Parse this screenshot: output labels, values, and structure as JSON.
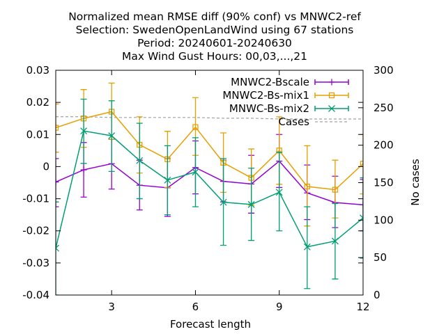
{
  "chart_data": {
    "type": "line",
    "title_lines": [
      "Normalized mean RMSE diff (90% conf) vs MNWC2-ref",
      "Selection: SwedenOpenLandWind using    67 stations",
      "Period: 20240601-20240630",
      "Max Wind Gust   Hours: 00,03,...,21"
    ],
    "xlabel": "Forecast length",
    "ylabel_right": "No cases",
    "xlim": [
      1,
      12
    ],
    "ylim": [
      -0.04,
      0.03
    ],
    "y2lim": [
      0,
      300
    ],
    "x_ticks": [
      3,
      6,
      9,
      12
    ],
    "y_ticks": [
      -0.04,
      -0.03,
      -0.02,
      -0.01,
      0,
      0.01,
      0.02,
      0.03
    ],
    "y_tick_labels": [
      "-0.04",
      "-0.03",
      "-0.02",
      "-0.01",
      "0",
      "0.01",
      "0.02",
      "0.03"
    ],
    "y2_ticks": [
      0,
      50,
      100,
      150,
      200,
      250,
      300
    ],
    "legend_position": "top-right",
    "series": [
      {
        "name": "MNWC2-Bscale",
        "color": "#9400d3",
        "marker": "plus",
        "x": [
          1,
          2,
          3,
          4,
          5,
          6,
          7,
          8,
          9,
          10,
          11,
          12
        ],
        "y": [
          -0.0048,
          -0.001,
          0.0009,
          -0.0058,
          -0.0066,
          -0.0003,
          -0.0046,
          -0.0054,
          0.0017,
          -0.0082,
          -0.0112,
          -0.0119
        ],
        "lo": [
          -0.0125,
          -0.0095,
          -0.007,
          -0.0135,
          -0.0155,
          -0.0085,
          -0.011,
          -0.0145,
          -0.0065,
          -0.0165,
          -0.019,
          -0.02
        ],
        "hi": [
          0.0025,
          0.0075,
          0.0085,
          0.002,
          0.0025,
          0.008,
          0.002,
          0.0035,
          0.01,
          0.0005,
          -0.003,
          -0.004
        ]
      },
      {
        "name": "MNWC2-Bs-mix1",
        "color": "#e69f00",
        "marker": "square",
        "x": [
          1,
          2,
          3,
          4,
          5,
          6,
          7,
          8,
          9,
          10,
          11,
          12
        ],
        "y": [
          0.0121,
          0.015,
          0.0171,
          0.0068,
          0.0023,
          0.0123,
          0.0012,
          -0.0035,
          0.005,
          -0.0062,
          -0.0072,
          0.0009
        ],
        "lo": [
          0.0045,
          0.006,
          0.0085,
          -0.002,
          -0.0065,
          0.0035,
          -0.008,
          -0.012,
          -0.0055,
          -0.0185,
          -0.016,
          -0.0085
        ],
        "hi": [
          0.0195,
          0.024,
          0.026,
          0.0155,
          0.011,
          0.0215,
          0.0105,
          0.0055,
          0.0155,
          0.0065,
          0.002,
          0.01
        ]
      },
      {
        "name": "MNWC-Bs-mix2",
        "color": "#009e73",
        "marker": "x",
        "x": [
          1,
          2,
          3,
          4,
          5,
          6,
          7,
          8,
          9,
          10,
          11,
          12
        ],
        "y": [
          -0.0254,
          0.0111,
          0.0096,
          0.0019,
          -0.0042,
          -0.0017,
          -0.0111,
          -0.0118,
          -0.008,
          -0.025,
          -0.0232,
          -0.016
        ],
        "lo": [
          -0.04,
          0.001,
          -0.0015,
          -0.01,
          -0.015,
          -0.0125,
          -0.0245,
          -0.023,
          -0.02,
          -0.038,
          -0.035,
          -0.0285
        ],
        "hi": [
          -0.011,
          0.021,
          0.0205,
          0.0135,
          0.0065,
          0.009,
          0.0025,
          -0.0005,
          0.0045,
          -0.0125,
          -0.0115,
          -0.0035
        ]
      }
    ],
    "cases": {
      "name": "Cases",
      "color": "#a0a0a0",
      "style": "dashed",
      "axis": "y2",
      "x": [
        1,
        2,
        3,
        4,
        5,
        6,
        7,
        8,
        9,
        10,
        11,
        12
      ],
      "y": [
        238,
        238,
        237,
        237,
        237,
        237,
        236,
        236,
        235,
        235,
        235,
        235
      ]
    }
  }
}
